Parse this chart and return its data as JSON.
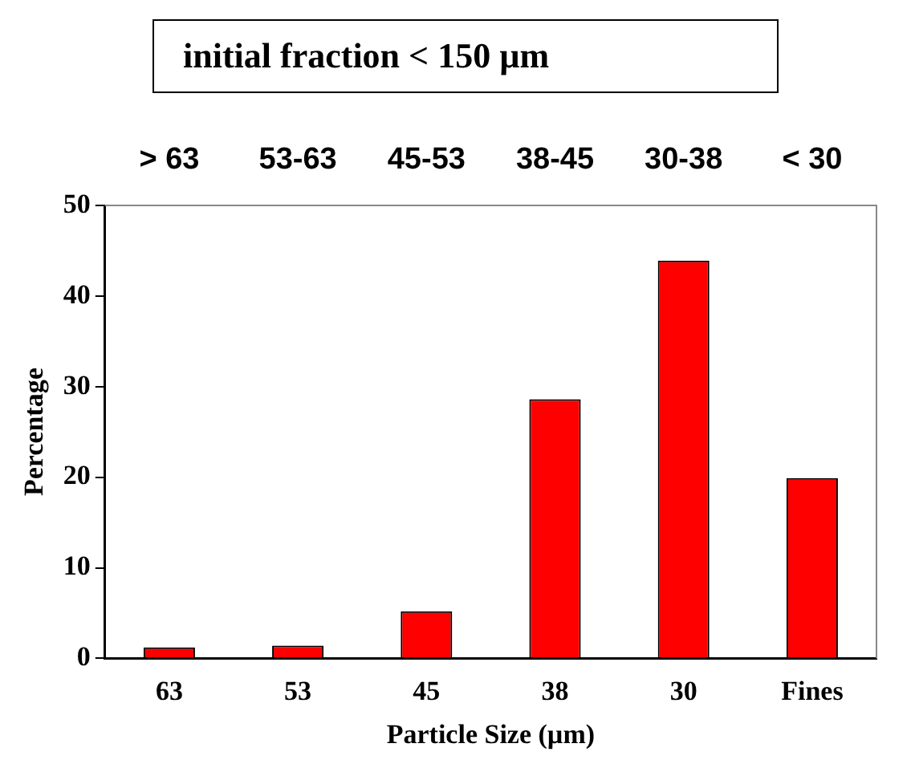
{
  "chart_data": {
    "type": "bar",
    "title": "initial fraction < 150 µm",
    "xlabel": "Particle Size (µm)",
    "ylabel": "Percentage",
    "categories": [
      "63",
      "53",
      "45",
      "38",
      "30",
      "Fines"
    ],
    "values": [
      1.2,
      1.4,
      5.2,
      28.6,
      43.9,
      19.9
    ],
    "color": "#ff0000",
    "annotations": [
      "> 63",
      "53-63",
      "45-53",
      "38-45",
      "30-38",
      "< 30"
    ],
    "ylim": [
      0,
      50
    ],
    "yticks": [
      0,
      10,
      20,
      30,
      40,
      50
    ],
    "grid": false,
    "legend": false
  }
}
